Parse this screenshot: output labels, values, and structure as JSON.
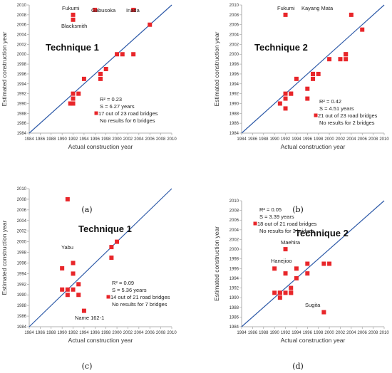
{
  "chart_data": [
    {
      "type": "scatter",
      "panel_label": "(a)",
      "title": "Technique 1",
      "xlabel": "Actual construction year",
      "ylabel": "Estimated construction year",
      "xlim": [
        1984,
        2010
      ],
      "ylim": [
        1984,
        2010
      ],
      "xticks": [
        "1984",
        "1986",
        "1988",
        "1990",
        "1992",
        "1994",
        "1996",
        "1998",
        "2000",
        "2002",
        "2004",
        "2006",
        "2008",
        "2010"
      ],
      "yticks": [
        "1984",
        "1986",
        "1988",
        "1990",
        "1992",
        "1994",
        "1996",
        "1998",
        "2000",
        "2002",
        "2004",
        "2006",
        "2008",
        "2010"
      ],
      "reference_line": "y = x",
      "marker_color": "#e8262a",
      "line_color": "#2e5aa8",
      "stats": [
        "R² = 0.23",
        "S = 6.27 years",
        "17 out of 23 road bridges",
        "No results for 6 bridges"
      ],
      "points": [
        {
          "x": 1991.5,
          "y": 1990
        },
        {
          "x": 1992,
          "y": 1990
        },
        {
          "x": 1992,
          "y": 1991
        },
        {
          "x": 1992,
          "y": 1992
        },
        {
          "x": 1993,
          "y": 1992
        },
        {
          "x": 1994,
          "y": 1995
        },
        {
          "x": 1997,
          "y": 1995
        },
        {
          "x": 1997,
          "y": 1996
        },
        {
          "x": 1998,
          "y": 1997
        },
        {
          "x": 2000,
          "y": 2000
        },
        {
          "x": 2001,
          "y": 2000
        },
        {
          "x": 2003,
          "y": 2000
        },
        {
          "x": 2006,
          "y": 2006
        },
        {
          "x": 1992,
          "y": 2008
        },
        {
          "x": 1992,
          "y": 2007
        },
        {
          "x": 1996,
          "y": 2009
        },
        {
          "x": 2003,
          "y": 2009
        }
      ],
      "annotations": [
        {
          "text": "Fukumi",
          "x": 1992,
          "y": 2008
        },
        {
          "text": "Blacksmith",
          "x": 1992,
          "y": 2007
        },
        {
          "text": "Gabusoka",
          "x": 1996,
          "y": 2009
        },
        {
          "text": "Inada",
          "x": 2003,
          "y": 2009
        }
      ]
    },
    {
      "type": "scatter",
      "panel_label": "(b)",
      "title": "Technique 2",
      "xlabel": "Actual construction year",
      "ylabel": "Estimated construction year",
      "xlim": [
        1984,
        2010
      ],
      "ylim": [
        1984,
        2010
      ],
      "xticks": [
        "1984",
        "1986",
        "1988",
        "1990",
        "1992",
        "1994",
        "1996",
        "1998",
        "2000",
        "2002",
        "2004",
        "2006",
        "2008",
        "2010"
      ],
      "yticks": [
        "1984",
        "1986",
        "1988",
        "1990",
        "1992",
        "1994",
        "1996",
        "1998",
        "2000",
        "2002",
        "2004",
        "2006",
        "2008",
        "2010"
      ],
      "reference_line": "y = x",
      "marker_color": "#e8262a",
      "line_color": "#2e5aa8",
      "stats": [
        "R² = 0.42",
        "S = 4.51 years",
        "21 out of 23 road bridges",
        "No results for 2 bridges"
      ],
      "points": [
        {
          "x": 1991,
          "y": 1990
        },
        {
          "x": 1992,
          "y": 1989
        },
        {
          "x": 1992,
          "y": 1991
        },
        {
          "x": 1992,
          "y": 1992
        },
        {
          "x": 1993,
          "y": 1992
        },
        {
          "x": 1994,
          "y": 1995
        },
        {
          "x": 1996,
          "y": 1991
        },
        {
          "x": 1996,
          "y": 1993
        },
        {
          "x": 1997,
          "y": 1995
        },
        {
          "x": 1997,
          "y": 1996
        },
        {
          "x": 1998,
          "y": 1996
        },
        {
          "x": 2000,
          "y": 1999
        },
        {
          "x": 2002,
          "y": 1999
        },
        {
          "x": 2003,
          "y": 1999
        },
        {
          "x": 2003,
          "y": 2000
        },
        {
          "x": 2006,
          "y": 2005
        },
        {
          "x": 1992,
          "y": 2008
        },
        {
          "x": 2004,
          "y": 2008
        },
        {
          "x": 1993,
          "y": 1992
        },
        {
          "x": 1997,
          "y": 1996
        },
        {
          "x": 2003,
          "y": 2000
        }
      ],
      "annotations": [
        {
          "text": "Fukumi",
          "x": 1992,
          "y": 2008
        },
        {
          "text": "Kayang Mata",
          "x": 2004,
          "y": 2008
        }
      ]
    },
    {
      "type": "scatter",
      "panel_label": "(c)",
      "title": "Technique 1",
      "xlabel": "Actual construction year",
      "ylabel": "Estimated construction year",
      "xlim": [
        1984,
        2010
      ],
      "ylim": [
        1984,
        2010
      ],
      "xticks": [
        "1984",
        "1986",
        "1988",
        "1990",
        "1992",
        "1994",
        "1996",
        "1998",
        "2000",
        "2002",
        "2004",
        "2006",
        "2008",
        "2010"
      ],
      "yticks": [
        "1984",
        "1986",
        "1988",
        "1990",
        "1992",
        "1994",
        "1996",
        "1998",
        "2000",
        "2002",
        "2004",
        "2006",
        "2008",
        "2010"
      ],
      "reference_line": "y = x",
      "marker_color": "#e8262a",
      "line_color": "#2e5aa8",
      "stats": [
        "R² = 0.09",
        "S = 5.36 years",
        "14 out of 21 road bridges",
        "No results for 7 bridges"
      ],
      "points": [
        {
          "x": 1990,
          "y": 1995
        },
        {
          "x": 1990,
          "y": 1991
        },
        {
          "x": 1991,
          "y": 1991
        },
        {
          "x": 1991,
          "y": 1990
        },
        {
          "x": 1992,
          "y": 1991
        },
        {
          "x": 1992,
          "y": 1994
        },
        {
          "x": 1992,
          "y": 1996
        },
        {
          "x": 1993,
          "y": 1990
        },
        {
          "x": 1993,
          "y": 1992
        },
        {
          "x": 1994,
          "y": 1987
        },
        {
          "x": 1999,
          "y": 1997
        },
        {
          "x": 1999,
          "y": 1999
        },
        {
          "x": 2000,
          "y": 2000
        },
        {
          "x": 1991,
          "y": 2008
        }
      ],
      "annotations": [
        {
          "text": "Yabu",
          "x": 1991,
          "y": 2008
        },
        {
          "text": "Name 162-1",
          "x": 1994,
          "y": 1987
        }
      ]
    },
    {
      "type": "scatter",
      "panel_label": "(d)",
      "title": "Technique 2",
      "xlabel": "Actual construction year",
      "ylabel": "Estimated construction year",
      "xlim": [
        1984,
        2010
      ],
      "ylim": [
        1984,
        2010
      ],
      "xticks": [
        "1984",
        "1986",
        "1988",
        "1990",
        "1992",
        "1994",
        "1996",
        "1998",
        "2000",
        "2002",
        "2004",
        "2006",
        "2008",
        "2010"
      ],
      "yticks": [
        "1984",
        "1986",
        "1988",
        "1990",
        "1992",
        "1994",
        "1996",
        "1998",
        "2000",
        "2002",
        "2004",
        "2006",
        "2008",
        "2010"
      ],
      "reference_line": "y = x",
      "marker_color": "#e8262a",
      "line_color": "#2e5aa8",
      "stats": [
        "R² = 0.05",
        "S = 3.39 years",
        "18 out of 21 road bridges",
        "No results for 3 bridges"
      ],
      "points": [
        {
          "x": 1990,
          "y": 1991
        },
        {
          "x": 1990,
          "y": 1996
        },
        {
          "x": 1991,
          "y": 1990
        },
        {
          "x": 1991,
          "y": 1991
        },
        {
          "x": 1992,
          "y": 1991
        },
        {
          "x": 1992,
          "y": 1995
        },
        {
          "x": 1992,
          "y": 2000
        },
        {
          "x": 1993,
          "y": 1991
        },
        {
          "x": 1993,
          "y": 1992
        },
        {
          "x": 1994,
          "y": 1994
        },
        {
          "x": 1994,
          "y": 1996
        },
        {
          "x": 1996,
          "y": 1995
        },
        {
          "x": 1996,
          "y": 1997
        },
        {
          "x": 1999,
          "y": 1997
        },
        {
          "x": 2000,
          "y": 1997
        },
        {
          "x": 1999,
          "y": 1987
        },
        {
          "x": 1991,
          "y": 1991
        },
        {
          "x": 1993,
          "y": 1991
        }
      ],
      "annotations": [
        {
          "text": "Maehira",
          "x": 1992,
          "y": 2000
        },
        {
          "text": "Hanejioo",
          "x": 1990,
          "y": 1996
        },
        {
          "text": "Sugita",
          "x": 1999,
          "y": 1987
        }
      ]
    }
  ]
}
